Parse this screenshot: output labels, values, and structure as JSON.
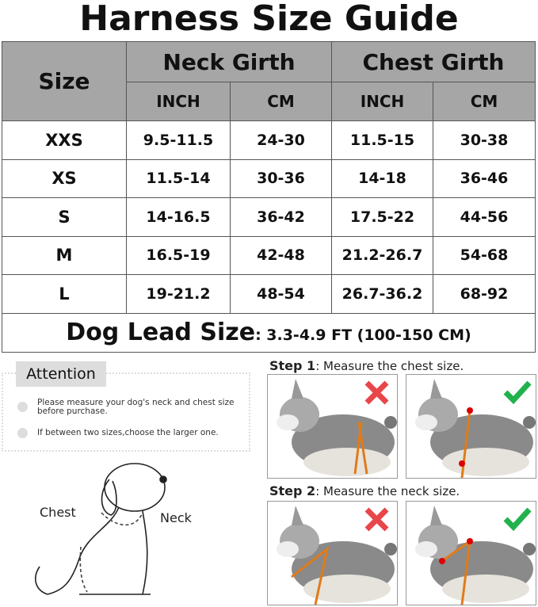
{
  "title": "Harness Size Guide",
  "table": {
    "size_header": "Size",
    "neck_header": "Neck Girth",
    "chest_header": "Chest Girth",
    "units": [
      "INCH",
      "CM",
      "INCH",
      "CM"
    ],
    "rows": [
      [
        "XXS",
        "9.5-11.5",
        "24-30",
        "11.5-15",
        "30-38"
      ],
      [
        "XS",
        "11.5-14",
        "30-36",
        "14-18",
        "36-46"
      ],
      [
        "S",
        "14-16.5",
        "36-42",
        "17.5-22",
        "44-56"
      ],
      [
        "M",
        "16.5-19",
        "42-48",
        "21.2-26.7",
        "54-68"
      ],
      [
        "L",
        "19-21.2",
        "48-54",
        "26.7-36.2",
        "68-92"
      ]
    ],
    "lead_label": "Dog Lead Size",
    "lead_value": ": 3.3-4.9 FT (100-150 CM)"
  },
  "attention": {
    "title": "Attention",
    "items": [
      "Please measure your dog's neck and chest size before purchase.",
      "If between two sizes,choose the larger one."
    ]
  },
  "diagram": {
    "chest_label": "Chest",
    "neck_label": "Neck"
  },
  "steps": [
    {
      "label": "Step 1",
      "text": ": Measure the chest size."
    },
    {
      "label": "Step 2",
      "text": ": Measure the neck size."
    }
  ],
  "colors": {
    "header_gray": "#a6a6a6",
    "wrong_red": "#e8464a",
    "right_green": "#22b14c",
    "strap_orange": "#e07b1a"
  }
}
